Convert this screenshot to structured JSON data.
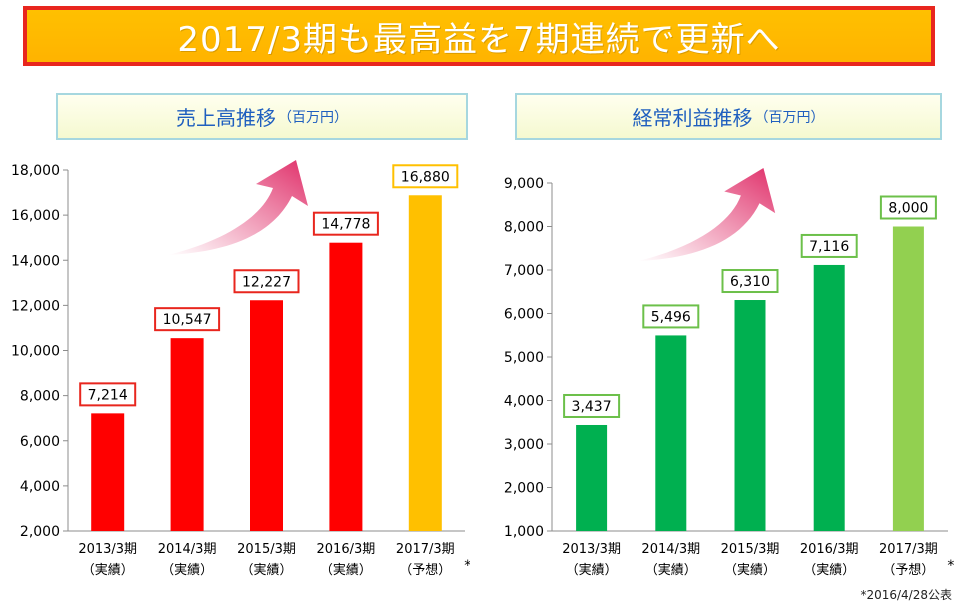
{
  "banner": {
    "title": "2017/3期も最高益を7期連続で更新へ"
  },
  "panels": {
    "left": {
      "title": "売上高推移",
      "unit": "（百万円）"
    },
    "right": {
      "title": "経常利益推移",
      "unit": "（百万円）"
    }
  },
  "footnote": "*2016/4/28公表",
  "colors": {
    "banner_bg": "#ffc000",
    "banner_border": "#e8261e",
    "sales_actual": "#ff0000",
    "sales_forecast": "#ffc000",
    "profit_actual": "#00b050",
    "profit_forecast": "#92d050",
    "arrow": "#e0306a"
  },
  "chart_data": [
    {
      "type": "bar",
      "title": "売上高推移（百万円）",
      "categories": [
        "2013/3期",
        "2014/3期",
        "2015/3期",
        "2016/3期",
        "2017/3期"
      ],
      "category_notes": [
        "（実績）",
        "（実績）",
        "（実績）",
        "（実績）",
        "（予想）"
      ],
      "forecast_marker": "*",
      "values": [
        7214,
        10547,
        12227,
        14778,
        16880
      ],
      "value_labels": [
        "7,214",
        "10,547",
        "12,227",
        "14,778",
        "16,880"
      ],
      "forecast": [
        false,
        false,
        false,
        false,
        true
      ],
      "ylim": [
        2000,
        18000
      ],
      "yticks": [
        2000,
        4000,
        6000,
        8000,
        10000,
        12000,
        14000,
        16000,
        18000
      ],
      "ytick_labels": [
        "2,000",
        "4,000",
        "6,000",
        "8,000",
        "10,000",
        "12,000",
        "14,000",
        "16,000",
        "18,000"
      ],
      "xlabel": "",
      "ylabel": "",
      "grid": false
    },
    {
      "type": "bar",
      "title": "経常利益推移（百万円）",
      "categories": [
        "2013/3期",
        "2014/3期",
        "2015/3期",
        "2016/3期",
        "2017/3期"
      ],
      "category_notes": [
        "（実績）",
        "（実績）",
        "（実績）",
        "（実績）",
        "（予想）"
      ],
      "forecast_marker": "*",
      "values": [
        3437,
        5496,
        6310,
        7116,
        8000
      ],
      "value_labels": [
        "3,437",
        "5,496",
        "6,310",
        "7,116",
        "8,000"
      ],
      "forecast": [
        false,
        false,
        false,
        false,
        true
      ],
      "ylim": [
        1000,
        9000
      ],
      "yticks": [
        1000,
        2000,
        3000,
        4000,
        5000,
        6000,
        7000,
        8000,
        9000
      ],
      "ytick_labels": [
        "1,000",
        "2,000",
        "3,000",
        "4,000",
        "5,000",
        "6,000",
        "7,000",
        "8,000",
        "9,000"
      ],
      "xlabel": "",
      "ylabel": "",
      "grid": false
    }
  ]
}
